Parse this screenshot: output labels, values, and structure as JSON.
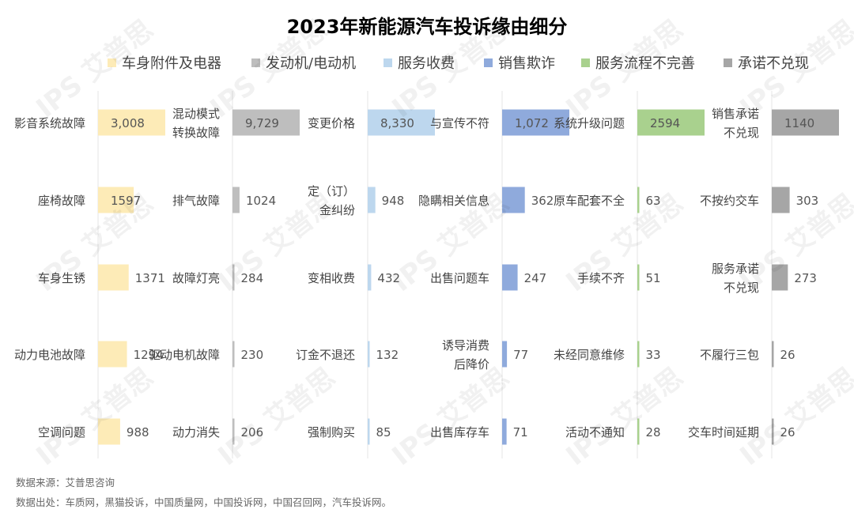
{
  "chart_data": {
    "type": "bar",
    "title": "2023年新能源汽车投诉缘由细分",
    "legend_placement": "top",
    "series": [
      {
        "name": "车身附件及电器",
        "color": "#FDEBB7",
        "categories": [
          "影音系统故障",
          "座椅故障",
          "车身生锈",
          "动力电池故障",
          "空调问题"
        ],
        "values": [
          3008,
          1597,
          1371,
          1294,
          988
        ],
        "value_labels": [
          "3,008",
          "1597",
          "1371",
          "1294",
          "988"
        ]
      },
      {
        "name": "发动机/电动机",
        "color": "#BEBEBE",
        "categories": [
          "混动模式转换故障",
          "排气故障",
          "故障灯亮",
          "驱动电机故障",
          "动力消失"
        ],
        "values": [
          9729,
          1024,
          284,
          230,
          206
        ],
        "value_labels": [
          "9,729",
          "1024",
          "284",
          "230",
          "206"
        ]
      },
      {
        "name": "服务收费",
        "color": "#BDD7EE",
        "categories": [
          "变更价格",
          "定（订）金纠纷",
          "变相收费",
          "订金不退还",
          "强制购买"
        ],
        "values": [
          8330,
          948,
          432,
          132,
          85
        ],
        "value_labels": [
          "8,330",
          "948",
          "432",
          "132",
          "85"
        ]
      },
      {
        "name": "销售欺诈",
        "color": "#8FAADC",
        "categories": [
          "与宣传不符",
          "隐瞒相关信息",
          "出售问题车",
          "诱导消费后降价",
          "出售库存车"
        ],
        "values": [
          1072,
          362,
          247,
          77,
          71
        ],
        "value_labels": [
          "1,072",
          "362",
          "247",
          "77",
          "71"
        ]
      },
      {
        "name": "服务流程不完善",
        "color": "#A9D18E",
        "categories": [
          "系统升级问题",
          "原车配套不全",
          "手续不齐",
          "未经同意维修",
          "活动不通知"
        ],
        "values": [
          2594,
          63,
          51,
          33,
          28
        ],
        "value_labels": [
          "2594",
          "63",
          "51",
          "33",
          "28"
        ]
      },
      {
        "name": "承诺不兑现",
        "color": "#A6A6A6",
        "categories": [
          "销售承诺不兑现",
          "不按约交车",
          "服务承诺不兑现",
          "不履行三包",
          "交车时间延期"
        ],
        "values": [
          1140,
          303,
          273,
          26,
          26
        ],
        "value_labels": [
          "1140",
          "303",
          "273",
          "26",
          "26"
        ]
      }
    ]
  },
  "source": {
    "line1": "数据来源：艾普思咨询",
    "line2": "数据出处：车质网，黑猫投诉，中国质量网，中国投诉网，中国召回网，汽车投诉网。"
  },
  "watermark": "IPS 艾普思"
}
